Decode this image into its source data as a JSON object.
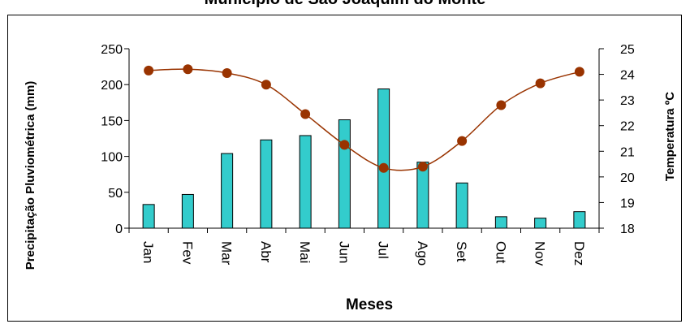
{
  "chart_data": {
    "type": "bar",
    "title": "Município de São Joaquim do Monte",
    "xlabel": "Meses",
    "ylabel": "Precipitação Pluviométrica (mm)",
    "y2label": "Temperatura ºC",
    "categories": [
      "Jan",
      "Fev",
      "Mar",
      "Abr",
      "Mai",
      "Jun",
      "Jul",
      "Ago",
      "Set",
      "Out",
      "Nov",
      "Dez"
    ],
    "ylim": [
      0,
      250
    ],
    "y2lim": [
      18,
      25
    ],
    "yticks": [
      0,
      50,
      100,
      150,
      200,
      250
    ],
    "y2ticks": [
      18,
      19,
      20,
      21,
      22,
      23,
      24,
      25
    ],
    "series": [
      {
        "type": "bar",
        "axis": "left",
        "color": "#33cccc",
        "values": [
          33,
          47,
          104,
          123,
          129,
          151,
          194,
          92,
          63,
          16,
          14,
          23
        ]
      },
      {
        "type": "line",
        "axis": "right",
        "color": "#993300",
        "marker_color": "#993300",
        "values": [
          24.15,
          24.2,
          24.05,
          23.6,
          22.45,
          21.25,
          20.35,
          20.4,
          21.4,
          22.8,
          23.65,
          24.1
        ]
      }
    ],
    "legend": "none",
    "grid": false
  }
}
